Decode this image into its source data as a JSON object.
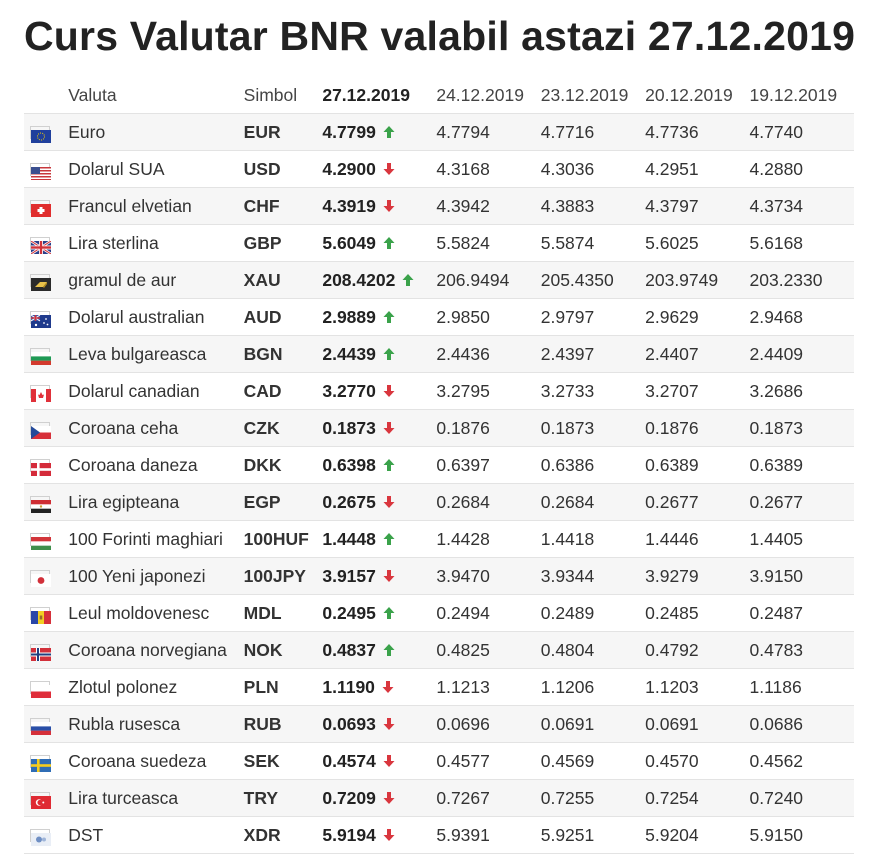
{
  "title": "Curs Valutar BNR valabil astazi 27.12.2019",
  "colors": {
    "up": "#3aa24a",
    "down": "#d9363e"
  },
  "headers": {
    "valuta": "Valuta",
    "simbol": "Simbol",
    "today": "27.12.2019",
    "d1": "24.12.2019",
    "d2": "23.12.2019",
    "d3": "20.12.2019",
    "d4": "19.12.2019"
  },
  "rows": [
    {
      "flag": "eu-flag-icon",
      "name": "Euro",
      "symbol": "EUR",
      "today": "4.7799",
      "trend": "up",
      "d1": "4.7794",
      "d2": "4.7716",
      "d3": "4.7736",
      "d4": "4.7740"
    },
    {
      "flag": "us-flag-icon",
      "name": "Dolarul SUA",
      "symbol": "USD",
      "today": "4.2900",
      "trend": "down",
      "d1": "4.3168",
      "d2": "4.3036",
      "d3": "4.2951",
      "d4": "4.2880"
    },
    {
      "flag": "ch-flag-icon",
      "name": "Francul elvetian",
      "symbol": "CHF",
      "today": "4.3919",
      "trend": "down",
      "d1": "4.3942",
      "d2": "4.3883",
      "d3": "4.3797",
      "d4": "4.3734"
    },
    {
      "flag": "gb-flag-icon",
      "name": "Lira sterlina",
      "symbol": "GBP",
      "today": "5.6049",
      "trend": "up",
      "d1": "5.5824",
      "d2": "5.5874",
      "d3": "5.6025",
      "d4": "5.6168"
    },
    {
      "flag": "gold-icon",
      "name": "gramul de aur",
      "symbol": "XAU",
      "today": "208.4202",
      "trend": "up",
      "d1": "206.9494",
      "d2": "205.4350",
      "d3": "203.9749",
      "d4": "203.2330"
    },
    {
      "flag": "au-flag-icon",
      "name": "Dolarul australian",
      "symbol": "AUD",
      "today": "2.9889",
      "trend": "up",
      "d1": "2.9850",
      "d2": "2.9797",
      "d3": "2.9629",
      "d4": "2.9468"
    },
    {
      "flag": "bg-flag-icon",
      "name": "Leva bulgareasca",
      "symbol": "BGN",
      "today": "2.4439",
      "trend": "up",
      "d1": "2.4436",
      "d2": "2.4397",
      "d3": "2.4407",
      "d4": "2.4409"
    },
    {
      "flag": "ca-flag-icon",
      "name": "Dolarul canadian",
      "symbol": "CAD",
      "today": "3.2770",
      "trend": "down",
      "d1": "3.2795",
      "d2": "3.2733",
      "d3": "3.2707",
      "d4": "3.2686"
    },
    {
      "flag": "cz-flag-icon",
      "name": "Coroana ceha",
      "symbol": "CZK",
      "today": "0.1873",
      "trend": "down",
      "d1": "0.1876",
      "d2": "0.1873",
      "d3": "0.1876",
      "d4": "0.1873"
    },
    {
      "flag": "dk-flag-icon",
      "name": "Coroana daneza",
      "symbol": "DKK",
      "today": "0.6398",
      "trend": "up",
      "d1": "0.6397",
      "d2": "0.6386",
      "d3": "0.6389",
      "d4": "0.6389"
    },
    {
      "flag": "eg-flag-icon",
      "name": "Lira egipteana",
      "symbol": "EGP",
      "today": "0.2675",
      "trend": "down",
      "d1": "0.2684",
      "d2": "0.2684",
      "d3": "0.2677",
      "d4": "0.2677"
    },
    {
      "flag": "hu-flag-icon",
      "name": "100 Forinti maghiari",
      "symbol": "100HUF",
      "today": "1.4448",
      "trend": "up",
      "d1": "1.4428",
      "d2": "1.4418",
      "d3": "1.4446",
      "d4": "1.4405"
    },
    {
      "flag": "jp-flag-icon",
      "name": "100 Yeni japonezi",
      "symbol": "100JPY",
      "today": "3.9157",
      "trend": "down",
      "d1": "3.9470",
      "d2": "3.9344",
      "d3": "3.9279",
      "d4": "3.9150"
    },
    {
      "flag": "md-flag-icon",
      "name": "Leul moldovenesc",
      "symbol": "MDL",
      "today": "0.2495",
      "trend": "up",
      "d1": "0.2494",
      "d2": "0.2489",
      "d3": "0.2485",
      "d4": "0.2487"
    },
    {
      "flag": "no-flag-icon",
      "name": "Coroana norvegiana",
      "symbol": "NOK",
      "today": "0.4837",
      "trend": "up",
      "d1": "0.4825",
      "d2": "0.4804",
      "d3": "0.4792",
      "d4": "0.4783"
    },
    {
      "flag": "pl-flag-icon",
      "name": "Zlotul polonez",
      "symbol": "PLN",
      "today": "1.1190",
      "trend": "down",
      "d1": "1.1213",
      "d2": "1.1206",
      "d3": "1.1203",
      "d4": "1.1186"
    },
    {
      "flag": "ru-flag-icon",
      "name": "Rubla rusesca",
      "symbol": "RUB",
      "today": "0.0693",
      "trend": "down",
      "d1": "0.0696",
      "d2": "0.0691",
      "d3": "0.0691",
      "d4": "0.0686"
    },
    {
      "flag": "se-flag-icon",
      "name": "Coroana suedeza",
      "symbol": "SEK",
      "today": "0.4574",
      "trend": "down",
      "d1": "0.4577",
      "d2": "0.4569",
      "d3": "0.4570",
      "d4": "0.4562"
    },
    {
      "flag": "tr-flag-icon",
      "name": "Lira turceasca",
      "symbol": "TRY",
      "today": "0.7209",
      "trend": "down",
      "d1": "0.7267",
      "d2": "0.7255",
      "d3": "0.7254",
      "d4": "0.7240"
    },
    {
      "flag": "dst-icon",
      "name": "DST",
      "symbol": "XDR",
      "today": "5.9194",
      "trend": "down",
      "d1": "5.9391",
      "d2": "5.9251",
      "d3": "5.9204",
      "d4": "5.9150"
    }
  ]
}
